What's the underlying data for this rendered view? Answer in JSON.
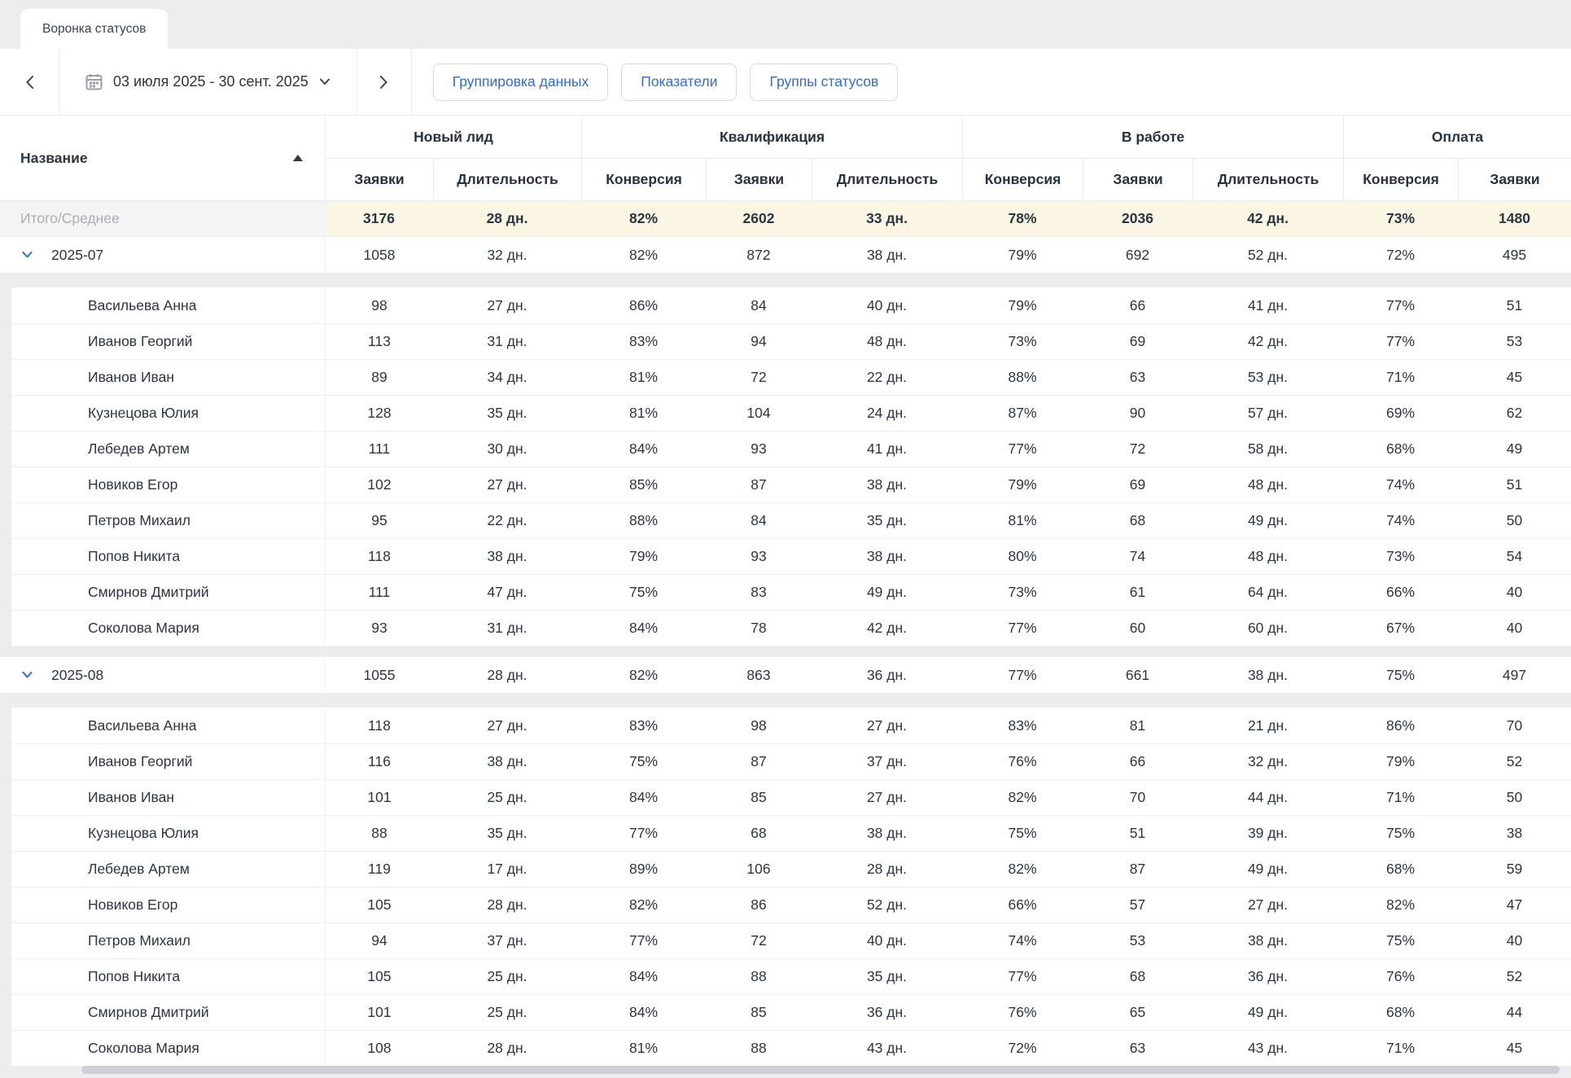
{
  "tab": {
    "label": "Воронка статусов"
  },
  "toolbar": {
    "date_range": "03 июля 2025 - 30 сент. 2025",
    "buttons": [
      "Группировка данных",
      "Показатели",
      "Группы статусов"
    ],
    "icons": [
      "chevron-left-icon",
      "calendar-icon",
      "chevron-down-icon",
      "chevron-right-icon"
    ]
  },
  "table": {
    "name_header": "Название",
    "sort": {
      "column": "Название",
      "direction": "asc",
      "icon": "sort-asc-icon"
    },
    "groups": [
      {
        "label": "Новый лид",
        "span": 2
      },
      {
        "label": "Квалификация",
        "span": 3
      },
      {
        "label": "В работе",
        "span": 3
      },
      {
        "label": "Оплата",
        "span": 2
      }
    ],
    "columns": [
      "Заявки",
      "Длительность",
      "Конверсия",
      "Заявки",
      "Длительность",
      "Конверсия",
      "Заявки",
      "Длительность",
      "Конверсия",
      "Заявки"
    ],
    "summary": {
      "label": "Итого/Среднее",
      "values": [
        "3176",
        "28 дн.",
        "82%",
        "2602",
        "33 дн.",
        "78%",
        "2036",
        "42 дн.",
        "73%",
        "1480"
      ]
    },
    "sections": [
      {
        "label": "2025-07",
        "expanded": true,
        "values": [
          "1058",
          "32 дн.",
          "82%",
          "872",
          "38 дн.",
          "79%",
          "692",
          "52 дн.",
          "72%",
          "495"
        ],
        "rows": [
          {
            "name": "Васильева Анна",
            "values": [
              "98",
              "27 дн.",
              "86%",
              "84",
              "40 дн.",
              "79%",
              "66",
              "41 дн.",
              "77%",
              "51"
            ]
          },
          {
            "name": "Иванов Георгий",
            "values": [
              "113",
              "31 дн.",
              "83%",
              "94",
              "48 дн.",
              "73%",
              "69",
              "42 дн.",
              "77%",
              "53"
            ]
          },
          {
            "name": "Иванов Иван",
            "values": [
              "89",
              "34 дн.",
              "81%",
              "72",
              "22 дн.",
              "88%",
              "63",
              "53 дн.",
              "71%",
              "45"
            ]
          },
          {
            "name": "Кузнецова Юлия",
            "values": [
              "128",
              "35 дн.",
              "81%",
              "104",
              "24 дн.",
              "87%",
              "90",
              "57 дн.",
              "69%",
              "62"
            ]
          },
          {
            "name": "Лебедев Артем",
            "values": [
              "111",
              "30 дн.",
              "84%",
              "93",
              "41 дн.",
              "77%",
              "72",
              "58 дн.",
              "68%",
              "49"
            ]
          },
          {
            "name": "Новиков Егор",
            "values": [
              "102",
              "27 дн.",
              "85%",
              "87",
              "38 дн.",
              "79%",
              "69",
              "48 дн.",
              "74%",
              "51"
            ]
          },
          {
            "name": "Петров Михаил",
            "values": [
              "95",
              "22 дн.",
              "88%",
              "84",
              "35 дн.",
              "81%",
              "68",
              "49 дн.",
              "74%",
              "50"
            ]
          },
          {
            "name": "Попов Никита",
            "values": [
              "118",
              "38 дн.",
              "79%",
              "93",
              "38 дн.",
              "80%",
              "74",
              "48 дн.",
              "73%",
              "54"
            ]
          },
          {
            "name": "Смирнов Дмитрий",
            "values": [
              "111",
              "47 дн.",
              "75%",
              "83",
              "49 дн.",
              "73%",
              "61",
              "64 дн.",
              "66%",
              "40"
            ]
          },
          {
            "name": "Соколова Мария",
            "values": [
              "93",
              "31 дн.",
              "84%",
              "78",
              "42 дн.",
              "77%",
              "60",
              "60 дн.",
              "67%",
              "40"
            ]
          }
        ]
      },
      {
        "label": "2025-08",
        "expanded": true,
        "values": [
          "1055",
          "28 дн.",
          "82%",
          "863",
          "36 дн.",
          "77%",
          "661",
          "38 дн.",
          "75%",
          "497"
        ],
        "rows": [
          {
            "name": "Васильева Анна",
            "values": [
              "118",
              "27 дн.",
              "83%",
              "98",
              "27 дн.",
              "83%",
              "81",
              "21 дн.",
              "86%",
              "70"
            ]
          },
          {
            "name": "Иванов Георгий",
            "values": [
              "116",
              "38 дн.",
              "75%",
              "87",
              "37 дн.",
              "76%",
              "66",
              "32 дн.",
              "79%",
              "52"
            ]
          },
          {
            "name": "Иванов Иван",
            "values": [
              "101",
              "25 дн.",
              "84%",
              "85",
              "27 дн.",
              "82%",
              "70",
              "44 дн.",
              "71%",
              "50"
            ]
          },
          {
            "name": "Кузнецова Юлия",
            "values": [
              "88",
              "35 дн.",
              "77%",
              "68",
              "38 дн.",
              "75%",
              "51",
              "39 дн.",
              "75%",
              "38"
            ]
          },
          {
            "name": "Лебедев Артем",
            "values": [
              "119",
              "17 дн.",
              "89%",
              "106",
              "28 дн.",
              "82%",
              "87",
              "49 дн.",
              "68%",
              "59"
            ]
          },
          {
            "name": "Новиков Егор",
            "values": [
              "105",
              "28 дн.",
              "82%",
              "86",
              "52 дн.",
              "66%",
              "57",
              "27 дн.",
              "82%",
              "47"
            ]
          },
          {
            "name": "Петров Михаил",
            "values": [
              "94",
              "37 дн.",
              "77%",
              "72",
              "40 дн.",
              "74%",
              "53",
              "38 дн.",
              "75%",
              "40"
            ]
          },
          {
            "name": "Попов Никита",
            "values": [
              "105",
              "25 дн.",
              "84%",
              "88",
              "35 дн.",
              "77%",
              "68",
              "36 дн.",
              "76%",
              "52"
            ]
          },
          {
            "name": "Смирнов Дмитрий",
            "values": [
              "101",
              "25 дн.",
              "84%",
              "85",
              "36 дн.",
              "76%",
              "65",
              "49 дн.",
              "68%",
              "44"
            ]
          },
          {
            "name": "Соколова Мария",
            "values": [
              "108",
              "28 дн.",
              "81%",
              "88",
              "43 дн.",
              "72%",
              "63",
              "43 дн.",
              "71%",
              "45"
            ]
          }
        ]
      }
    ]
  },
  "colors": {
    "page_bg": "#ebedef",
    "accent_blue": "#2c6be0",
    "summary_bg": "#faf6e3",
    "text_dark": "#2b3642",
    "text_muted": "#a9aeb6",
    "border": "#e9ebee"
  }
}
